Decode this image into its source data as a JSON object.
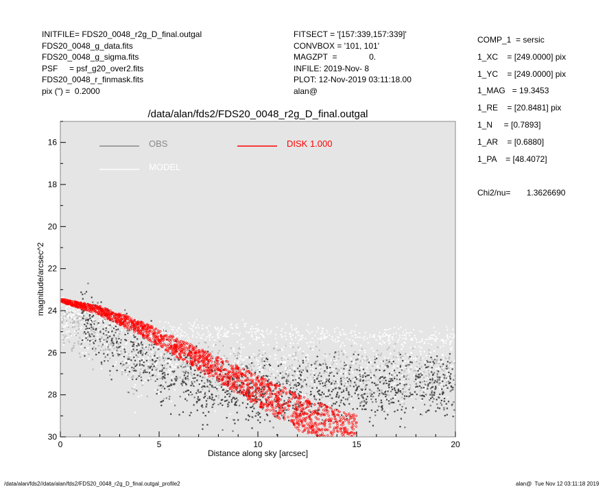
{
  "header_left": [
    "INITFILE= FDS20_0048_r2g_D_final.outgal",
    "FDS20_0048_g_data.fits",
    "FDS20_0048_g_sigma.fits",
    "PSF     = psf_g20_over2.fits",
    "FDS20_0048_r_finmask.fits",
    "pix (\") =  0.2000"
  ],
  "header_mid": [
    "FITSECT = '[157:339,157:339]'",
    "CONVBOX = '101, 101'",
    "MAGZPT  =              0.",
    "INFILE: 2019-Nov- 8",
    "PLOT: 12-Nov-2019 03:11:18.00",
    "alan@"
  ],
  "header_right": [
    "COMP_1  = sersic",
    "1_XC    = [249.0000] pix",
    "1_YC    = [249.0000] pix",
    "1_MAG   = 19.3453",
    "1_RE    = [20.8481] pix",
    "1_N     = [0.7893]",
    "1_AR    = [0.6880]",
    "1_PA    = [48.4072]"
  ],
  "chi2": "Chi2/nu=       1.3626690",
  "footer_left": "/data/alan/fds2//data/alan/fds2/FDS20_0048_r2g_D_final.outgal_profile2",
  "footer_right": "alan@  Tue Nov 12 03:11:18 2019",
  "chart_data": {
    "type": "scatter",
    "title": "/data/alan/fds2/FDS20_0048_r2g_D_final.outgal",
    "xlabel": "Distance along sky [arcsec]",
    "ylabel": "magnitude/arcsec^2",
    "xlim": [
      0,
      20
    ],
    "ylim": [
      30,
      15
    ],
    "y_inverted": true,
    "x_ticks": [
      "0",
      "5",
      "10",
      "15",
      "20"
    ],
    "y_ticks": [
      "16",
      "18",
      "20",
      "22",
      "24",
      "26",
      "28",
      "30"
    ],
    "legend": [
      {
        "label": "OBS",
        "color": "#888888"
      },
      {
        "label": "DISK  1.000",
        "color": "#ff0000"
      },
      {
        "label": "MODEL",
        "color": "#ffffff"
      }
    ],
    "legend_placement": "top-left",
    "background_color": "#e5e5e5",
    "series": [
      {
        "name": "OBS",
        "color": "#444444",
        "x": [
          0.5,
          1.5,
          3,
          4.5,
          5.5,
          7,
          9,
          11,
          13,
          15,
          17,
          19,
          20
        ],
        "y": [
          23.7,
          24.6,
          25.6,
          26.4,
          27.0,
          27.6,
          27.9,
          28.0,
          27.8,
          27.7,
          27.6,
          27.5,
          27.5
        ]
      },
      {
        "name": "MODEL",
        "color": "#ffffff",
        "x": [
          0,
          2,
          4,
          6,
          8,
          10,
          12,
          14,
          16,
          18,
          20
        ],
        "y": [
          23.6,
          24.4,
          24.8,
          25.0,
          25.0,
          25.1,
          25.1,
          25.2,
          25.2,
          25.3,
          25.3
        ]
      },
      {
        "name": "DISK  1.000",
        "color": "#ff0000",
        "x": [
          0,
          2,
          4,
          6,
          8,
          10,
          12,
          14,
          15
        ],
        "y": [
          23.5,
          24.0,
          24.8,
          25.8,
          26.8,
          27.8,
          28.8,
          29.7,
          30.0
        ]
      }
    ]
  }
}
